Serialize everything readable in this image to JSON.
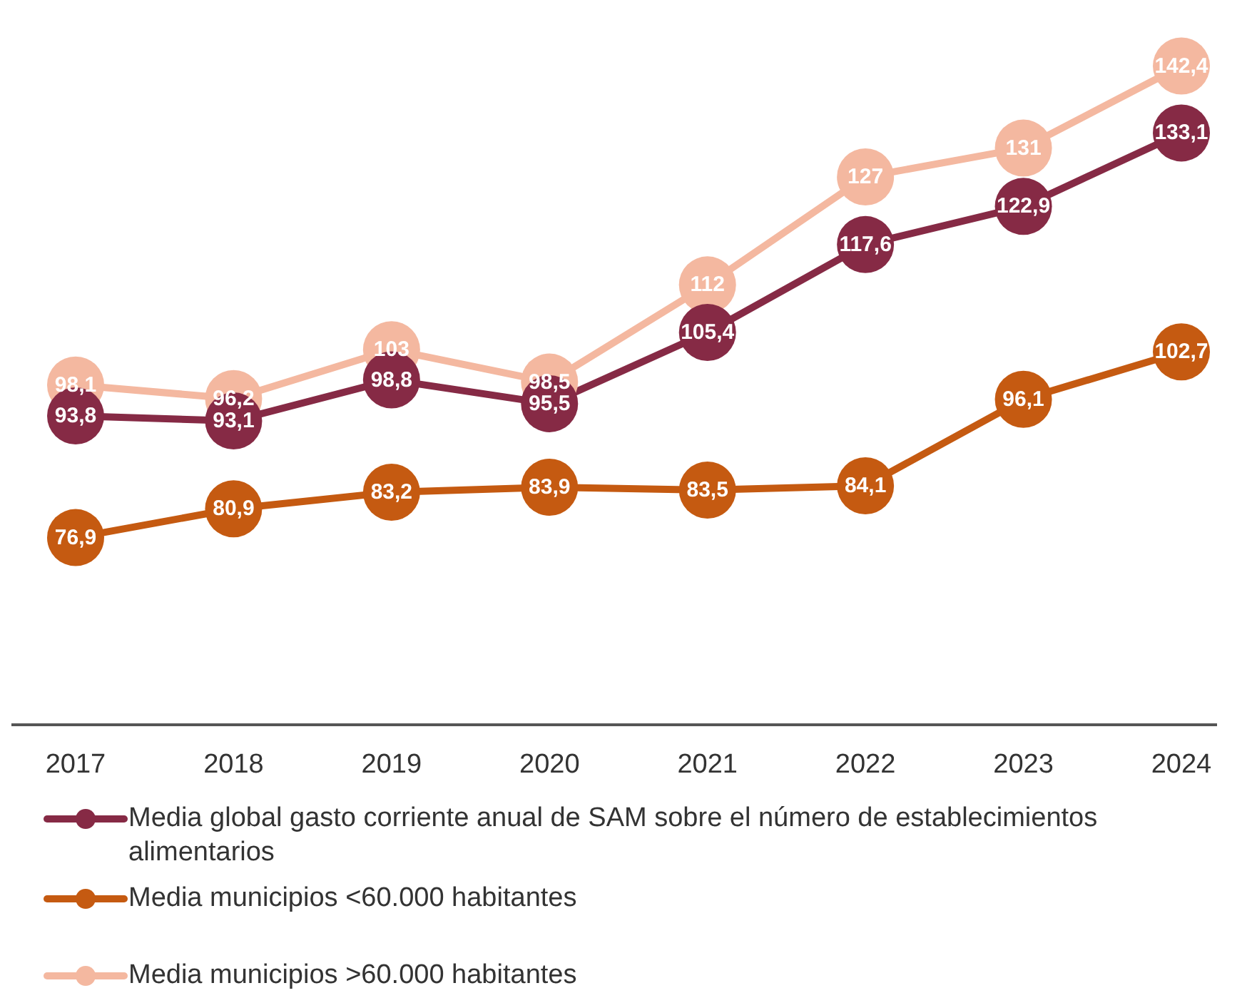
{
  "chart_data": {
    "type": "line",
    "categories": [
      "2017",
      "2018",
      "2019",
      "2020",
      "2021",
      "2022",
      "2023",
      "2024"
    ],
    "series": [
      {
        "name": "Media global gasto corriente anual de SAM sobre el número de establecimientos alimentarios",
        "color": "#862a45",
        "values": [
          93.8,
          93.1,
          98.8,
          95.5,
          105.4,
          117.6,
          122.9,
          133.1
        ],
        "value_labels": [
          "93,8",
          "93,1",
          "98,8",
          "95,5",
          "105,4",
          "117,6",
          "122,9",
          "133,1"
        ]
      },
      {
        "name": "Media municipios <60.000 habitantes",
        "color": "#c55a11",
        "values": [
          76.9,
          80.9,
          83.2,
          83.9,
          83.5,
          84.1,
          96.1,
          102.7
        ],
        "value_labels": [
          "76,9",
          "80,9",
          "83,2",
          "83,9",
          "83,5",
          "84,1",
          "96,1",
          "102,7"
        ]
      },
      {
        "name": "Media municipios >60.000 habitantes",
        "color": "#f4b8a0",
        "values": [
          98.1,
          96.2,
          103,
          98.5,
          112,
          127,
          131,
          142.4
        ],
        "value_labels": [
          "98,1",
          "96,2",
          "103",
          "98,5",
          "112",
          "127",
          "131",
          "142,4"
        ]
      }
    ],
    "tick_labels": "x",
    "marker": "circle",
    "line_style": "solid",
    "grid": false,
    "legend": "bottom"
  }
}
